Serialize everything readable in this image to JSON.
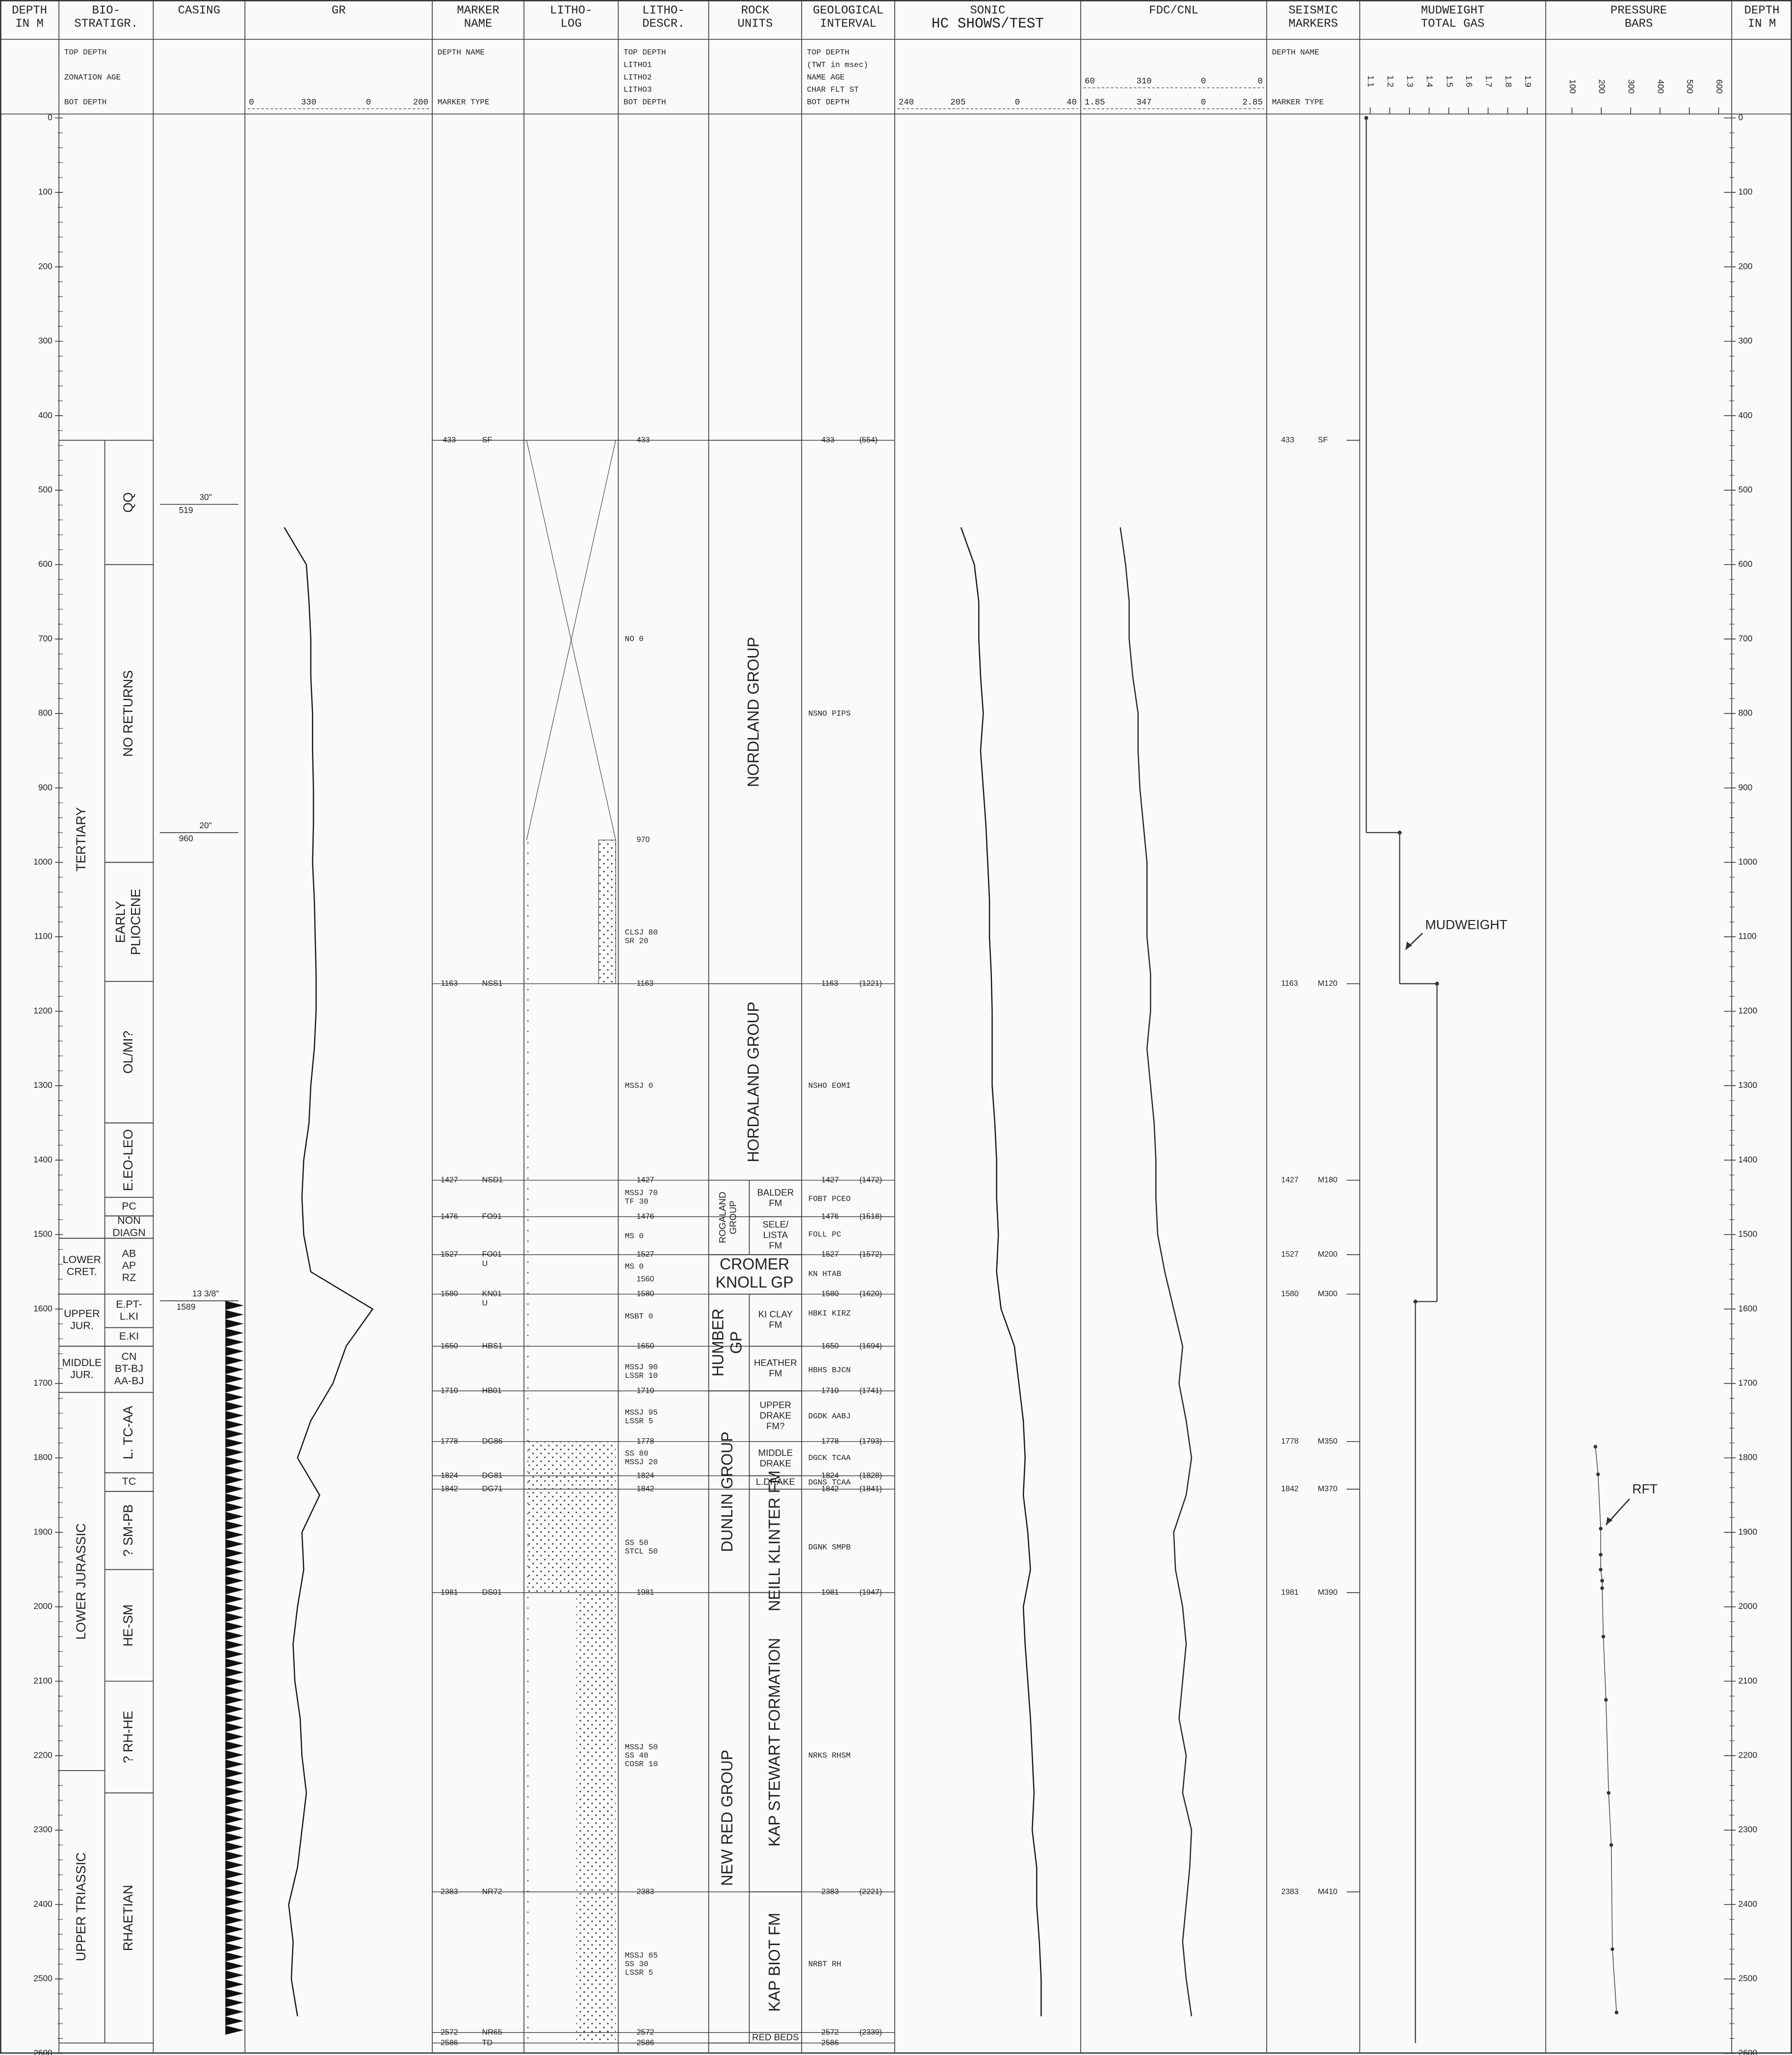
{
  "columns": [
    {
      "title": [
        "DEPTH",
        "IN M"
      ]
    },
    {
      "title": [
        "BIO-",
        "STRATIGR."
      ],
      "sub": [
        "TOP DEPTH",
        "ZONATION AGE",
        "BOT DEPTH"
      ]
    },
    {
      "title": [
        "CASING"
      ]
    },
    {
      "title": [
        "GR"
      ],
      "scale": [
        [
          "0",
          "330",
          "0",
          "200"
        ]
      ]
    },
    {
      "title": [
        "MARKER",
        "NAME"
      ],
      "sub": [
        "DEPTH NAME",
        "MARKER TYPE"
      ]
    },
    {
      "title": [
        "LITHO-",
        "LOG"
      ]
    },
    {
      "title": [
        "LITHO-",
        "DESCR."
      ],
      "sub": [
        "TOP DEPTH",
        "LITHO1",
        "LITHO2",
        "LITHO3",
        "BOT DEPTH"
      ]
    },
    {
      "title": [
        "ROCK",
        "UNITS"
      ]
    },
    {
      "title": [
        "GEOLOGICAL",
        "INTERVAL"
      ],
      "sub": [
        "TOP DEPTH",
        "(TWT in msec)",
        "NAME AGE",
        "CHAR FLT ST",
        "BOT DEPTH"
      ]
    },
    {
      "title": [
        "SONIC",
        "HC SHOWS/TEST"
      ],
      "scale": [
        [
          "240",
          "205",
          "0",
          "40"
        ]
      ]
    },
    {
      "title": [
        "FDC/CNL"
      ],
      "scale": [
        [
          "60",
          "310",
          "0",
          "0"
        ],
        [
          "1.85",
          "347",
          "0",
          "2.85"
        ]
      ]
    },
    {
      "title": [
        "SEISMIC",
        "MARKERS"
      ],
      "sub": [
        "DEPTH NAME",
        "MARKER TYPE"
      ]
    },
    {
      "title": [
        "MUDWEIGHT",
        "TOTAL GAS"
      ]
    },
    {
      "title": [
        "PRESSURE",
        "BARS"
      ]
    },
    {
      "title": [
        "DEPTH",
        "IN M"
      ]
    }
  ],
  "depth_ticks": [
    0,
    100,
    200,
    300,
    400,
    500,
    600,
    700,
    800,
    900,
    1000,
    1100,
    1200,
    1300,
    1400,
    1500,
    1600,
    1700,
    1800,
    1900,
    2000,
    2100,
    2200,
    2300,
    2400,
    2500,
    2600
  ],
  "bio_eras": [
    {
      "label": "TERTIARY",
      "top": 433,
      "bot": 1505
    },
    {
      "label": [
        "LOWER",
        "CRET."
      ],
      "top": 1505,
      "bot": 1580
    },
    {
      "label": [
        "UPPER",
        "JUR."
      ],
      "top": 1580,
      "bot": 1650
    },
    {
      "label": [
        "MIDDLE",
        "JUR."
      ],
      "top": 1650,
      "bot": 1712
    },
    {
      "label": "LOWER JURASSIC",
      "top": 1712,
      "bot": 2220
    },
    {
      "label": "UPPER TRIASSIC",
      "top": 2220,
      "bot": 2586
    }
  ],
  "bio_zones": [
    {
      "label": "QQ",
      "top": 433,
      "bot": 600
    },
    {
      "label": "NO RETURNS",
      "top": 600,
      "bot": 1000
    },
    {
      "label": [
        "EARLY",
        "PLIOCENE"
      ],
      "top": 1000,
      "bot": 1160
    },
    {
      "label": "OL/MI?",
      "top": 1160,
      "bot": 1350
    },
    {
      "label": "E.EO-LEO",
      "top": 1350,
      "bot": 1450
    },
    {
      "label": "PC",
      "top": 1450,
      "bot": 1475
    },
    {
      "label": [
        "NON",
        "DIAGN"
      ],
      "top": 1475,
      "bot": 1505
    },
    {
      "label": [
        "AB",
        "AP",
        "RZ"
      ],
      "top": 1505,
      "bot": 1580
    },
    {
      "label": [
        "E.PT-",
        "L.KI"
      ],
      "top": 1580,
      "bot": 1625
    },
    {
      "label": "E.KI",
      "top": 1625,
      "bot": 1650
    },
    {
      "label": [
        "CN",
        "BT-BJ",
        "AA-BJ"
      ],
      "top": 1650,
      "bot": 1712
    },
    {
      "label": "L. TC-AA",
      "top": 1712,
      "bot": 1820
    },
    {
      "label": "TC",
      "top": 1820,
      "bot": 1845
    },
    {
      "label": "? SM-PB",
      "top": 1845,
      "bot": 1950
    },
    {
      "label": "HE-SM",
      "top": 1950,
      "bot": 2100
    },
    {
      "label": "? RH-HE",
      "top": 2100,
      "bot": 2250
    },
    {
      "label": "RHAETIAN",
      "top": 2250,
      "bot": 2586
    }
  ],
  "casing": [
    {
      "size": "30\"",
      "depth": 519
    },
    {
      "size": "20\"",
      "depth": 960
    },
    {
      "size": "13 3/8\"",
      "depth": 1589
    }
  ],
  "markers": [
    {
      "depth": 433,
      "name": "SF"
    },
    {
      "depth": 1163,
      "name": "NSS1"
    },
    {
      "depth": 1427,
      "name": "NSD1"
    },
    {
      "depth": 1476,
      "name": "FO91"
    },
    {
      "depth": 1527,
      "name": "FO01",
      "type": "U"
    },
    {
      "depth": 1580,
      "name": "KN01",
      "type": "U"
    },
    {
      "depth": 1650,
      "name": "HBS1"
    },
    {
      "depth": 1710,
      "name": "HB01"
    },
    {
      "depth": 1778,
      "name": "DG86"
    },
    {
      "depth": 1824,
      "name": "DG81"
    },
    {
      "depth": 1842,
      "name": "DG71"
    },
    {
      "depth": 1981,
      "name": "DS01"
    },
    {
      "depth": 2383,
      "name": "NR72"
    },
    {
      "depth": 2572,
      "name": "NR65"
    },
    {
      "depth": 2586,
      "name": "TD"
    }
  ],
  "litho_descr": {
    "depths": [
      433,
      970,
      1163,
      1427,
      1476,
      1527,
      1560,
      1580,
      1650,
      1710,
      1778,
      1824,
      1842,
      1981,
      2383,
      2572,
      2586
    ],
    "texts": [
      {
        "depth": 700,
        "lines": [
          "NO     0"
        ]
      },
      {
        "depth": 1100,
        "lines": [
          "CLSJ  80",
          "SR    20"
        ]
      },
      {
        "depth": 1300,
        "lines": [
          "MSSJ   0"
        ]
      },
      {
        "depth": 1450,
        "lines": [
          "MSSJ  70",
          "TF    30"
        ]
      },
      {
        "depth": 1502,
        "lines": [
          "MS     0"
        ]
      },
      {
        "depth": 1543,
        "lines": [
          "MS     0"
        ]
      },
      {
        "depth": 1610,
        "lines": [
          "MSBT   0"
        ]
      },
      {
        "depth": 1684,
        "lines": [
          "MSSJ  90",
          "LSSR  10"
        ]
      },
      {
        "depth": 1745,
        "lines": [
          "MSSJ  95",
          "LSSR   5"
        ]
      },
      {
        "depth": 1800,
        "lines": [
          "SS    80",
          "MSSJ  20"
        ]
      },
      {
        "depth": 1920,
        "lines": [
          "SS    50",
          "STCL  50"
        ]
      },
      {
        "depth": 2200,
        "lines": [
          "MSSJ  50",
          "SS    40",
          "COSR  10"
        ]
      },
      {
        "depth": 2480,
        "lines": [
          "MSSJ  65",
          "SS    30",
          "LSSR   5"
        ]
      }
    ]
  },
  "rock_units": [
    {
      "label": "NORDLAND GROUP",
      "top": 433,
      "bot": 1163
    },
    {
      "label": "HORDALAND GROUP",
      "top": 1163,
      "bot": 1427
    },
    {
      "label": [
        "ROGALAND",
        "GROUP"
      ],
      "top": 1427,
      "bot": 1527,
      "formations": [
        {
          "label": [
            "BALDER",
            "FM"
          ],
          "top": 1427,
          "bot": 1476
        },
        {
          "label": [
            "SELE/",
            "LISTA",
            "FM"
          ],
          "top": 1476,
          "bot": 1527
        }
      ]
    },
    {
      "label": [
        "CROMER",
        "KNOLL GP"
      ],
      "top": 1527,
      "bot": 1580
    },
    {
      "label": [
        "HUMBER",
        "GP"
      ],
      "top": 1580,
      "bot": 1710,
      "formations": [
        {
          "label": [
            "KI CLAY",
            "FM"
          ],
          "top": 1580,
          "bot": 1650
        },
        {
          "label": [
            "HEATHER",
            "FM"
          ],
          "top": 1650,
          "bot": 1710
        }
      ]
    },
    {
      "label": "DUNLIN GROUP",
      "top": 1710,
      "bot": 1981,
      "formations": [
        {
          "label": [
            "UPPER",
            "DRAKE",
            "FM?"
          ],
          "top": 1710,
          "bot": 1778
        },
        {
          "label": [
            "MIDDLE",
            "DRAKE"
          ],
          "top": 1778,
          "bot": 1824
        },
        {
          "label": "L.DRAKE",
          "top": 1824,
          "bot": 1842
        },
        {
          "label": "NEILL KLINTER FM",
          "top": 1842,
          "bot": 1981
        }
      ]
    },
    {
      "label": "NEW RED GROUP",
      "top": 1981,
      "bot": 2586,
      "formations": [
        {
          "label": "KAP STEWART FORMATION",
          "top": 1981,
          "bot": 2383
        },
        {
          "label": "KAP BIOT FM",
          "top": 2383,
          "bot": 2572
        },
        {
          "label": "RED BEDS",
          "top": 2572,
          "bot": 2586
        }
      ]
    }
  ],
  "geo_interval": {
    "tops": [
      {
        "depth": 433,
        "twt": "(554)"
      },
      {
        "depth": 1163,
        "twt": "(1221)"
      },
      {
        "depth": 1427,
        "twt": "(1472)"
      },
      {
        "depth": 1476,
        "twt": "(1518)"
      },
      {
        "depth": 1527,
        "twt": "(1572)"
      },
      {
        "depth": 1580,
        "twt": "(1620)"
      },
      {
        "depth": 1650,
        "twt": "(1694)"
      },
      {
        "depth": 1710,
        "twt": "(1741)"
      },
      {
        "depth": 1778,
        "twt": "(1793)"
      },
      {
        "depth": 1824,
        "twt": "(1828)"
      },
      {
        "depth": 1842,
        "twt": "(1841)"
      },
      {
        "depth": 1981,
        "twt": "(1947)"
      },
      {
        "depth": 2383,
        "twt": "(2221)"
      },
      {
        "depth": 2572,
        "twt": "(2339)"
      },
      {
        "depth": 2586
      }
    ],
    "names": [
      {
        "depth": 800,
        "text": "NSNO  PIPS"
      },
      {
        "depth": 1300,
        "text": "NSHO  EOMI"
      },
      {
        "depth": 1452,
        "text": "FOBT  PCEO"
      },
      {
        "depth": 1500,
        "text": "FOLL  PC"
      },
      {
        "depth": 1553,
        "text": "KN    HTAB"
      },
      {
        "depth": 1606,
        "text": "HBKI  KIRZ"
      },
      {
        "depth": 1682,
        "text": "HBHS  BJCN"
      },
      {
        "depth": 1744,
        "text": "DGDK  AABJ"
      },
      {
        "depth": 1800,
        "text": "DGCK  TCAA"
      },
      {
        "depth": 1833,
        "text": "DGNS  TCAA"
      },
      {
        "depth": 1920,
        "text": "DGNK  SMPB"
      },
      {
        "depth": 2200,
        "text": "NRKS  RHSM"
      },
      {
        "depth": 2480,
        "text": "NRBT  RH"
      }
    ]
  },
  "curves": {
    "depths": [
      550,
      600,
      650,
      700,
      750,
      800,
      850,
      900,
      950,
      1000,
      1050,
      1100,
      1150,
      1200,
      1250,
      1300,
      1350,
      1400,
      1450,
      1500,
      1550,
      1600,
      1650,
      1700,
      1750,
      1800,
      1850,
      1900,
      1950,
      2000,
      2050,
      2100,
      2150,
      2200,
      2250,
      2300,
      2350,
      2400,
      2450,
      2500,
      2550
    ],
    "gr": {
      "xlim": [
        0,
        200
      ],
      "values": [
        40,
        65,
        68,
        70,
        70,
        72,
        72,
        73,
        73,
        72,
        74,
        75,
        76,
        76,
        74,
        70,
        68,
        62,
        60,
        62,
        70,
        140,
        110,
        95,
        70,
        55,
        80,
        60,
        62,
        55,
        50,
        52,
        58,
        60,
        65,
        60,
        55,
        45,
        50,
        48,
        55
      ]
    },
    "sonic": {
      "xlim": [
        240,
        40
      ],
      "values": [
        170,
        155,
        150,
        150,
        148,
        145,
        148,
        145,
        142,
        140,
        138,
        138,
        136,
        135,
        135,
        135,
        132,
        130,
        130,
        128,
        130,
        125,
        110,
        105,
        100,
        98,
        100,
        95,
        92,
        100,
        98,
        95,
        92,
        90,
        88,
        90,
        85,
        85,
        82,
        80,
        80
      ]
    },
    "density": {
      "xlim": [
        1.85,
        2.85
      ],
      "values": [
        2.05,
        2.08,
        2.1,
        2.1,
        2.12,
        2.15,
        2.15,
        2.16,
        2.18,
        2.2,
        2.2,
        2.2,
        2.22,
        2.22,
        2.2,
        2.22,
        2.24,
        2.25,
        2.25,
        2.26,
        2.3,
        2.35,
        2.4,
        2.38,
        2.42,
        2.45,
        2.42,
        2.35,
        2.36,
        2.4,
        2.42,
        2.4,
        2.38,
        2.42,
        2.4,
        2.45,
        2.44,
        2.42,
        2.4,
        2.42,
        2.45
      ]
    }
  },
  "seismic_markers": [
    {
      "depth": 433,
      "name": "SF"
    },
    {
      "depth": 1163,
      "name": "M120"
    },
    {
      "depth": 1427,
      "name": "M180"
    },
    {
      "depth": 1527,
      "name": "M200"
    },
    {
      "depth": 1580,
      "name": "M300"
    },
    {
      "depth": 1778,
      "name": "M350"
    },
    {
      "depth": 1842,
      "name": "M370"
    },
    {
      "depth": 1981,
      "name": "M390"
    },
    {
      "depth": 2383,
      "name": "M410"
    }
  ],
  "mudweight": {
    "ticks": [
      1.1,
      1.2,
      1.3,
      1.4,
      1.5,
      1.6,
      1.7,
      1.8,
      1.9
    ],
    "steps": [
      {
        "top": 0,
        "bot": 960,
        "value": 1.08
      },
      {
        "top": 960,
        "bot": 1163,
        "value": 1.25
      },
      {
        "top": 1163,
        "bot": 1590,
        "value": 1.44
      },
      {
        "top": 1590,
        "bot": 2586,
        "value": 1.33
      }
    ],
    "annotation": "MUDWEIGHT"
  },
  "pressure": {
    "ticks": [
      100,
      200,
      300,
      400,
      500,
      600
    ],
    "xlim": [
      100,
      600
    ],
    "rft": [
      {
        "depth": 1785,
        "value": 180
      },
      {
        "depth": 1822,
        "value": 189
      },
      {
        "depth": 1895,
        "value": 198
      },
      {
        "depth": 1930,
        "value": 198
      },
      {
        "depth": 1950,
        "value": 198
      },
      {
        "depth": 1965,
        "value": 203
      },
      {
        "depth": 1975,
        "value": 203
      },
      {
        "depth": 2040,
        "value": 207
      },
      {
        "depth": 2125,
        "value": 216
      },
      {
        "depth": 2250,
        "value": 225
      },
      {
        "depth": 2320,
        "value": 234
      },
      {
        "depth": 2460,
        "value": 238
      },
      {
        "depth": 2545,
        "value": 252
      }
    ],
    "annotation": "RFT"
  }
}
